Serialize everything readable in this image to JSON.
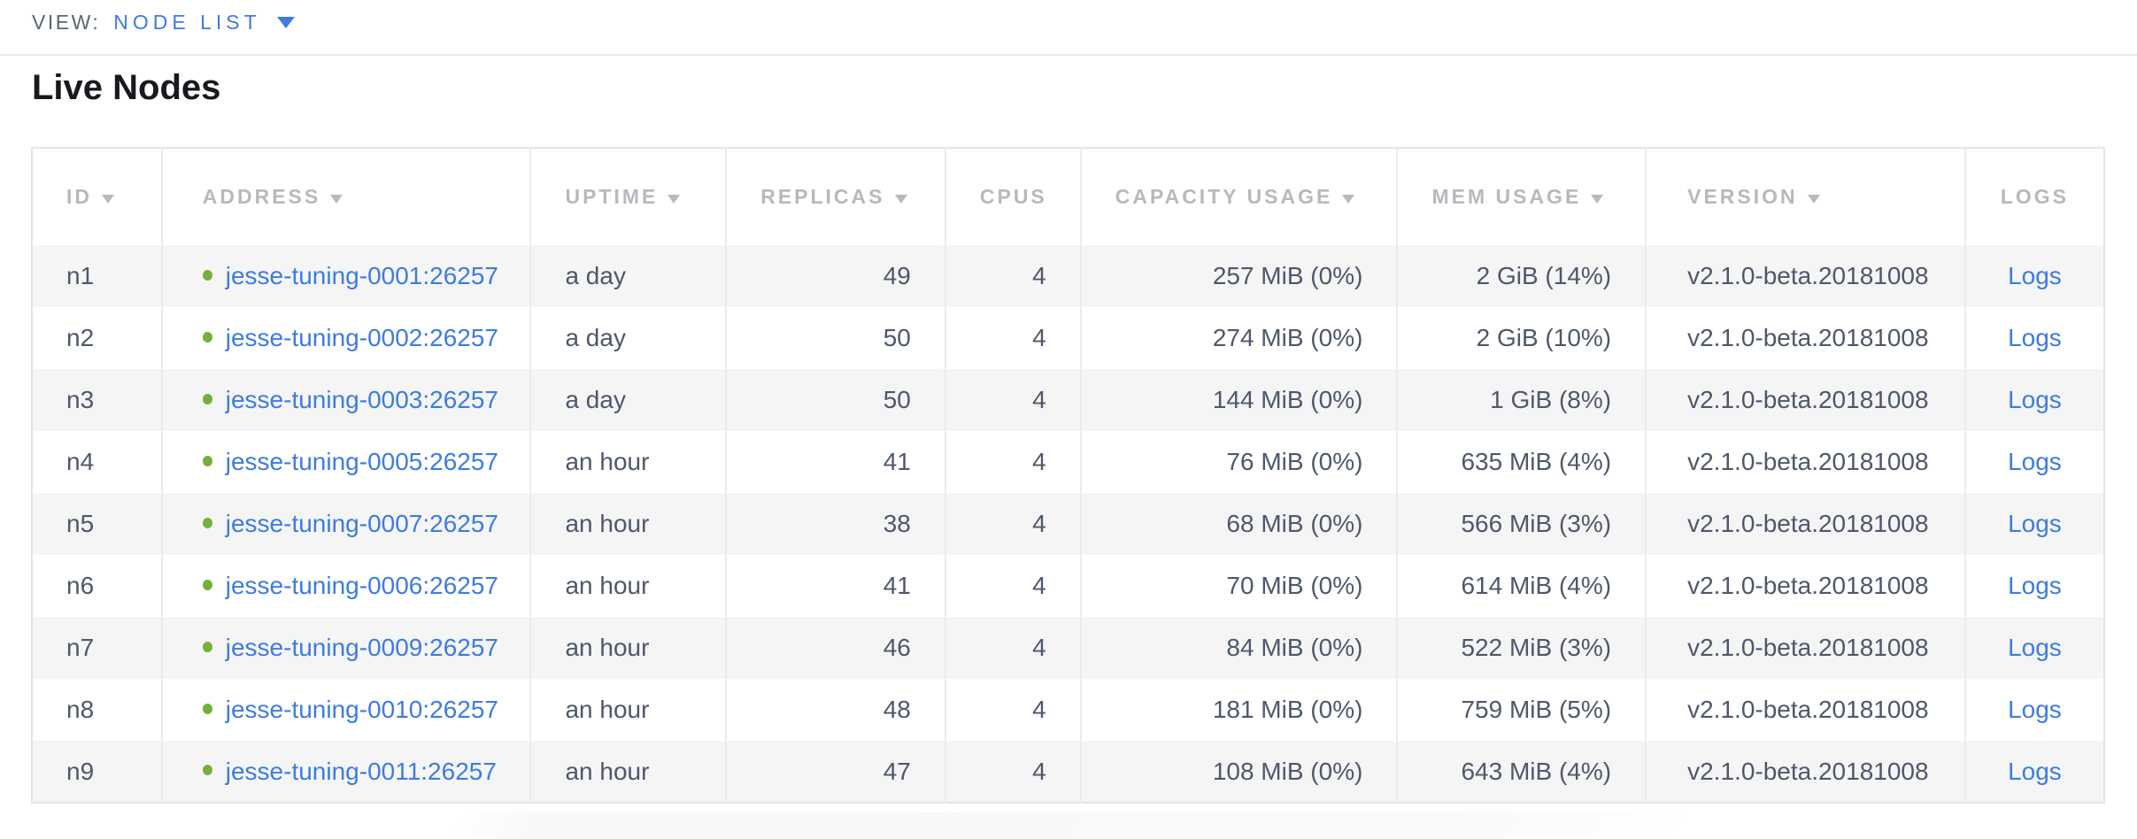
{
  "topbar": {
    "view_label": "VIEW:",
    "view_value": "NODE LIST"
  },
  "page_title": "Live Nodes",
  "table": {
    "columns": [
      {
        "key": "id",
        "label": "ID",
        "sortable": true,
        "header_align": "left",
        "cell_align": "left"
      },
      {
        "key": "address",
        "label": "ADDRESS",
        "sortable": true,
        "header_align": "left",
        "cell_align": "left"
      },
      {
        "key": "uptime",
        "label": "UPTIME",
        "sortable": true,
        "header_align": "left",
        "cell_align": "left"
      },
      {
        "key": "replicas",
        "label": "REPLICAS",
        "sortable": true,
        "header_align": "left",
        "cell_align": "right"
      },
      {
        "key": "cpus",
        "label": "CPUS",
        "sortable": false,
        "header_align": "left",
        "cell_align": "right"
      },
      {
        "key": "capacity",
        "label": "CAPACITY USAGE",
        "sortable": true,
        "header_align": "left",
        "cell_align": "right"
      },
      {
        "key": "mem",
        "label": "MEM USAGE",
        "sortable": true,
        "header_align": "left",
        "cell_align": "right"
      },
      {
        "key": "version",
        "label": "VERSION",
        "sortable": true,
        "header_align": "left",
        "cell_align": "left"
      },
      {
        "key": "logs",
        "label": "LOGS",
        "sortable": false,
        "header_align": "center",
        "cell_align": "center"
      }
    ],
    "rows": [
      {
        "id": "n1",
        "address": "jesse-tuning-0001:26257",
        "uptime": "a day",
        "replicas": "49",
        "cpus": "4",
        "capacity": "257 MiB (0%)",
        "mem": "2 GiB (14%)",
        "version": "v2.1.0-beta.20181008",
        "logs": "Logs"
      },
      {
        "id": "n2",
        "address": "jesse-tuning-0002:26257",
        "uptime": "a day",
        "replicas": "50",
        "cpus": "4",
        "capacity": "274 MiB (0%)",
        "mem": "2 GiB (10%)",
        "version": "v2.1.0-beta.20181008",
        "logs": "Logs"
      },
      {
        "id": "n3",
        "address": "jesse-tuning-0003:26257",
        "uptime": "a day",
        "replicas": "50",
        "cpus": "4",
        "capacity": "144 MiB (0%)",
        "mem": "1 GiB (8%)",
        "version": "v2.1.0-beta.20181008",
        "logs": "Logs"
      },
      {
        "id": "n4",
        "address": "jesse-tuning-0005:26257",
        "uptime": "an hour",
        "replicas": "41",
        "cpus": "4",
        "capacity": "76 MiB (0%)",
        "mem": "635 MiB (4%)",
        "version": "v2.1.0-beta.20181008",
        "logs": "Logs"
      },
      {
        "id": "n5",
        "address": "jesse-tuning-0007:26257",
        "uptime": "an hour",
        "replicas": "38",
        "cpus": "4",
        "capacity": "68 MiB (0%)",
        "mem": "566 MiB (3%)",
        "version": "v2.1.0-beta.20181008",
        "logs": "Logs"
      },
      {
        "id": "n6",
        "address": "jesse-tuning-0006:26257",
        "uptime": "an hour",
        "replicas": "41",
        "cpus": "4",
        "capacity": "70 MiB (0%)",
        "mem": "614 MiB (4%)",
        "version": "v2.1.0-beta.20181008",
        "logs": "Logs"
      },
      {
        "id": "n7",
        "address": "jesse-tuning-0009:26257",
        "uptime": "an hour",
        "replicas": "46",
        "cpus": "4",
        "capacity": "84 MiB (0%)",
        "mem": "522 MiB (3%)",
        "version": "v2.1.0-beta.20181008",
        "logs": "Logs"
      },
      {
        "id": "n8",
        "address": "jesse-tuning-0010:26257",
        "uptime": "an hour",
        "replicas": "48",
        "cpus": "4",
        "capacity": "181 MiB (0%)",
        "mem": "759 MiB (5%)",
        "version": "v2.1.0-beta.20181008",
        "logs": "Logs"
      },
      {
        "id": "n9",
        "address": "jesse-tuning-0011:26257",
        "uptime": "an hour",
        "replicas": "47",
        "cpus": "4",
        "capacity": "108 MiB (0%)",
        "mem": "643 MiB (4%)",
        "version": "v2.1.0-beta.20181008",
        "logs": "Logs"
      }
    ]
  },
  "colors": {
    "link_blue": "#3d7ce0",
    "status_green": "#76b03c",
    "header_gray": "#b6b9be",
    "body_text": "#4e586b",
    "row_stripe": "#f5f5f6",
    "border": "#e4e4e6"
  }
}
